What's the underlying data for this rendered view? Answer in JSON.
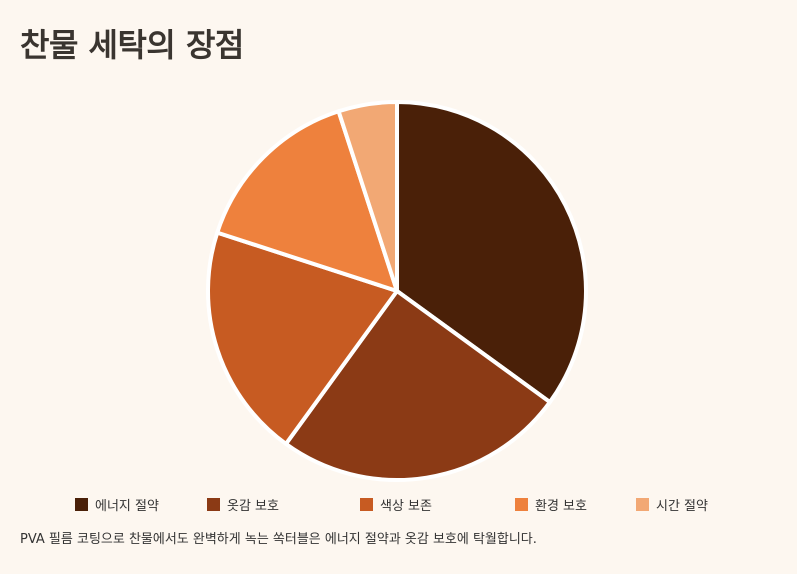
{
  "title": "찬물 세탁의 장점",
  "caption": "PVA 필름 코팅으로 찬물에서도 완벽하게 녹는 쏙터블은 에너지 절약과 옷감 보호에 탁월합니다.",
  "chart_data": {
    "type": "pie",
    "categories": [
      "에너지 절약",
      "옷감 보호",
      "색상 보존",
      "환경 보호",
      "시간 절약"
    ],
    "values": [
      35,
      25,
      20,
      15,
      5
    ],
    "colors": [
      "#4a2008",
      "#8b3a15",
      "#c75b22",
      "#ee813d",
      "#f2a874"
    ],
    "slice_border": "#ffffff",
    "start_angle": "top, clockwise",
    "legend_position": "bottom"
  }
}
